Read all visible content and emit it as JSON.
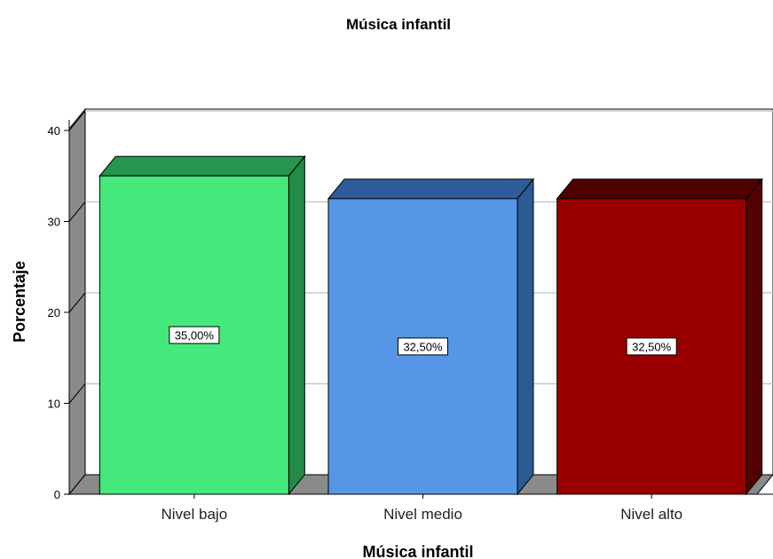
{
  "chart_data": {
    "type": "bar",
    "title": "Música infantil",
    "xlabel": "Música infantil",
    "ylabel": "Porcentaje",
    "categories": [
      "Nivel bajo",
      "Nivel medio",
      "Nivel alto"
    ],
    "values": [
      35.0,
      32.5,
      32.5
    ],
    "data_labels": [
      "35,00%",
      "32,50%",
      "32,50%"
    ],
    "ylim": [
      0,
      40
    ],
    "yticks": [
      "0",
      "10",
      "20",
      "30",
      "40"
    ],
    "grid": true,
    "style": "3d",
    "colors": {
      "front": [
        "#45e87b",
        "#5597e6",
        "#990000"
      ],
      "top": [
        "#259550",
        "#2f5d99",
        "#4d0000"
      ],
      "side": [
        "#228a47",
        "#2c5a92",
        "#520000"
      ],
      "wall": "#8a8a8a",
      "grid": "#c8c8c8"
    }
  }
}
